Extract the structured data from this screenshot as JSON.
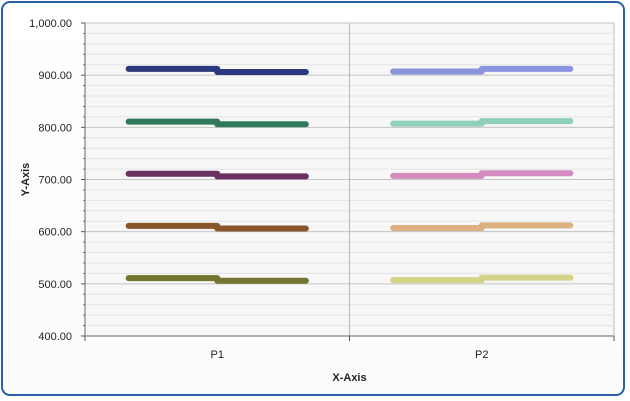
{
  "chart_data": {
    "type": "line",
    "xlabel": "X-Axis",
    "ylabel": "Y-Axis",
    "categories": [
      "P1",
      "P2"
    ],
    "ylim": [
      400,
      1000
    ],
    "ytick_labels": [
      "400.00",
      "500.00",
      "600.00",
      "700.00",
      "800.00",
      "900.00",
      "1,000.00"
    ],
    "yticks": [
      400,
      500,
      600,
      700,
      800,
      900,
      1000
    ],
    "grid": true,
    "legend": "none",
    "series_style": "step segments with rounded caps",
    "series": [
      {
        "category": "P1",
        "color": "#2b3a7e",
        "values": [
          912,
          906
        ]
      },
      {
        "category": "P1",
        "color": "#2f7a5c",
        "values": [
          811,
          806
        ]
      },
      {
        "category": "P1",
        "color": "#6a3060",
        "values": [
          711,
          706
        ]
      },
      {
        "category": "P1",
        "color": "#8a5528",
        "values": [
          611,
          606
        ]
      },
      {
        "category": "P1",
        "color": "#73762e",
        "values": [
          511,
          506
        ]
      },
      {
        "category": "P2",
        "color": "#8a94dc",
        "values": [
          907,
          912
        ]
      },
      {
        "category": "P2",
        "color": "#8fd0b8",
        "values": [
          807,
          812
        ]
      },
      {
        "category": "P2",
        "color": "#d48cc0",
        "values": [
          707,
          712
        ]
      },
      {
        "category": "P2",
        "color": "#dcb080",
        "values": [
          607,
          612
        ]
      },
      {
        "category": "P2",
        "color": "#d4d488",
        "values": [
          507,
          512
        ]
      }
    ]
  }
}
